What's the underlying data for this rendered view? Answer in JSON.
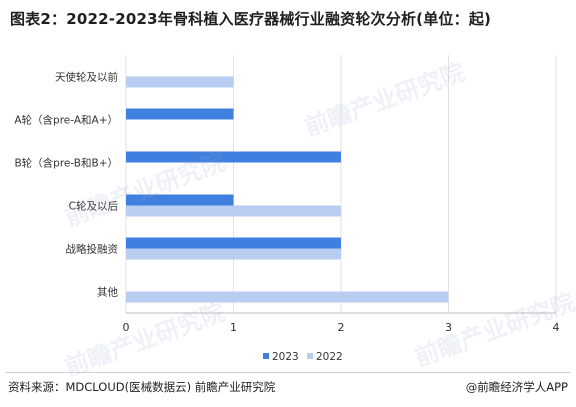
{
  "title": "图表2：2022-2023年骨科植入医疗器械行业融资轮次分析(单位：起)",
  "footer": {
    "source": "资料来源：MDCLOUD(医械数据云) 前瞻产业研究院",
    "brand": "@前瞻经济学人APP"
  },
  "watermark_text": "前瞻产业研究院",
  "chart_data": {
    "type": "bar",
    "orientation": "horizontal",
    "categories": [
      "天使轮及以前",
      "A轮（含pre-A和A+）",
      "B轮（含pre-B和B+）",
      "C轮及以后",
      "战略投融资",
      "其他"
    ],
    "series": [
      {
        "name": "2023",
        "color": "#3f7fe0",
        "values": [
          0,
          1,
          2,
          1,
          2,
          0
        ]
      },
      {
        "name": "2022",
        "color": "#b8cdf1",
        "values": [
          1,
          0,
          0,
          2,
          2,
          3
        ]
      }
    ],
    "xlim": [
      0,
      4
    ],
    "xticks": [
      "0",
      "1",
      "2",
      "3",
      "4"
    ],
    "grid": true,
    "legend_position": "bottom-center"
  }
}
